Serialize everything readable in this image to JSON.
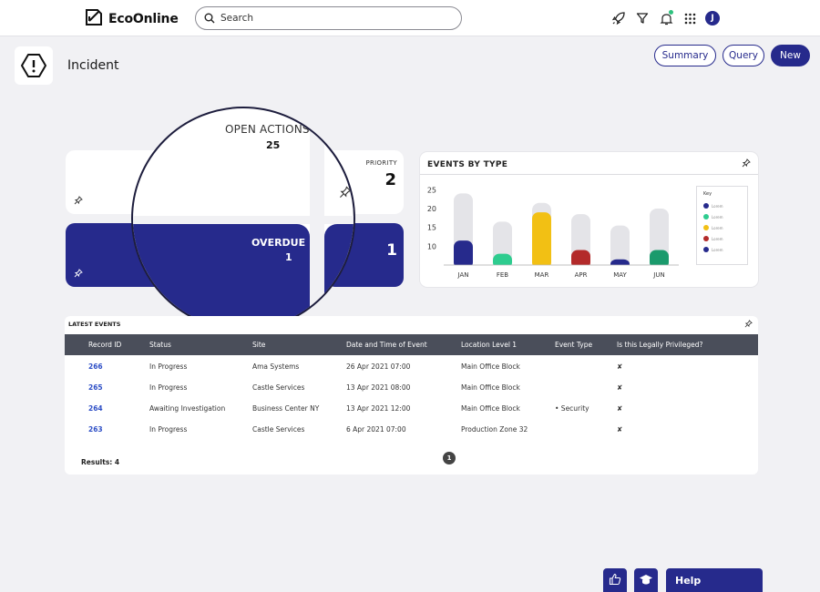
{
  "app": {
    "name": "EcoOnline"
  },
  "search": {
    "placeholder": "Search"
  },
  "header": {
    "avatar_initial": "J",
    "notification_color": "#2ec27e"
  },
  "page": {
    "title": "Incident",
    "buttons": {
      "summary": "Summary",
      "query": "Query",
      "new": "New"
    }
  },
  "tiles": {
    "open_actions": {
      "label": "OPEN ACTIONS",
      "value": "25"
    },
    "priority": {
      "label": "PRIORITY",
      "value": "2"
    },
    "overdue": {
      "label": "OVERDUE",
      "value": "1"
    },
    "fourth": {
      "value": "1"
    }
  },
  "chart": {
    "title": "EVENTS BY TYPE",
    "legend_title": "Key",
    "legend_items": [
      "Lorem",
      "Lorem",
      "Lorem",
      "Lorem",
      "Lorem"
    ]
  },
  "chart_data": {
    "type": "bar",
    "title": "EVENTS BY TYPE",
    "categories": [
      "JAN",
      "FEB",
      "MAR",
      "APR",
      "MAY",
      "JUN"
    ],
    "yticks": [
      10,
      15,
      20,
      25
    ],
    "ylim": [
      5,
      27
    ],
    "series": [
      {
        "values": [
          24,
          16.5,
          21.5,
          18.5,
          15.5,
          20
        ]
      },
      {
        "values": [
          11.5,
          8,
          19,
          9,
          6.5,
          9
        ]
      }
    ],
    "colors_background": "#e4e4e8",
    "colors_foreground": [
      "#262a8c",
      "#2ecc8f",
      "#f2c014",
      "#b32a2a",
      "#262a8c",
      "#1a9a6c"
    ],
    "legend_placement": "right"
  },
  "events": {
    "title": "LATEST EVENTS",
    "columns": [
      "Record ID",
      "Status",
      "Site",
      "Date and Time of Event",
      "Location Level 1",
      "Event Type",
      "Is this Legally Privileged?"
    ],
    "rows": [
      {
        "id": "266",
        "status": "In Progress",
        "site": "Ama Systems",
        "date": "26 Apr 2021 07:00",
        "location": "Main Office Block",
        "type": "",
        "privileged": "✘"
      },
      {
        "id": "265",
        "status": "In Progress",
        "site": "Castle Services",
        "date": "13 Apr 2021 08:00",
        "location": "Main Office Block",
        "type": "",
        "privileged": "✘"
      },
      {
        "id": "264",
        "status": "Awaiting Investigation",
        "site": "Business Center NY",
        "date": "13 Apr 2021 12:00",
        "location": "Main Office Block",
        "type": "•  Security",
        "privileged": "✘"
      },
      {
        "id": "263",
        "status": "In Progress",
        "site": "Castle Services",
        "date": "6 Apr 2021 07:00",
        "location": "Production Zone 32",
        "type": "",
        "privileged": "✘"
      }
    ],
    "results": "Results: 4",
    "page": "1"
  },
  "help": {
    "label": "Help"
  }
}
